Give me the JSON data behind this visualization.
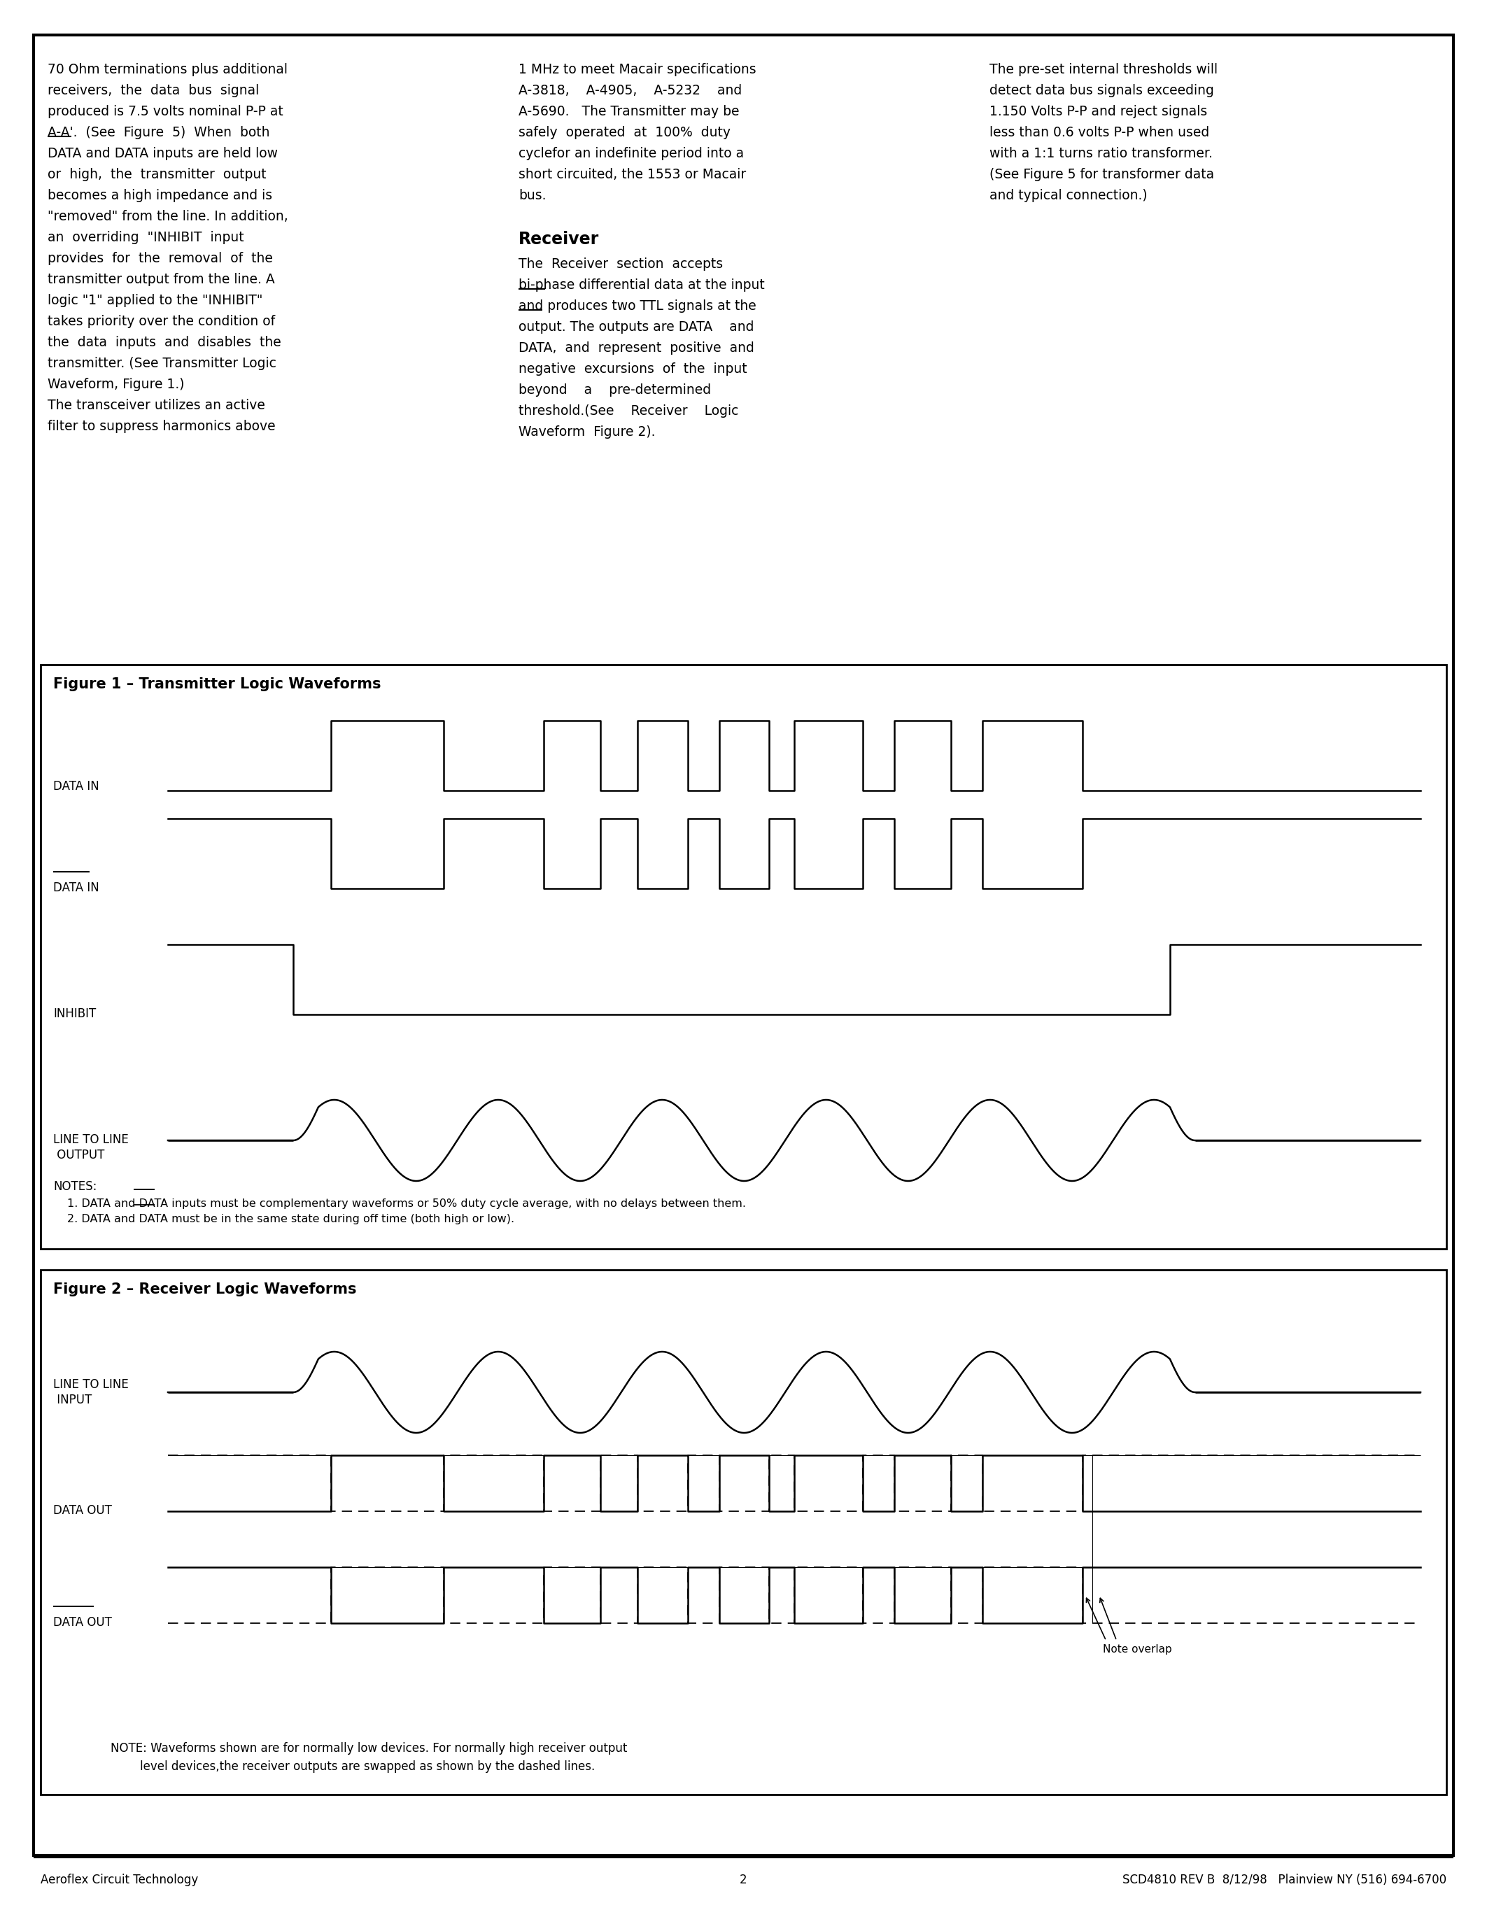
{
  "page_bg": "#ffffff",
  "fig1_title": "Figure 1 – Transmitter Logic Waveforms",
  "fig2_title": "Figure 2 – Receiver Logic Waveforms",
  "footer_left": "Aeroflex Circuit Technology",
  "footer_center": "2",
  "footer_right": "SCD4810 REV B  8/12/98   Plainview NY (516) 694-6700",
  "col1_lines": [
    "70 Ohm terminations plus additional",
    "receivers,  the  data  bus  signal",
    "produced is 7.5 volts nominal P-P at",
    "A-A'.  (See  Figure  5)  When  both",
    "DATA and DATA inputs are held low",
    "or  high,  the  transmitter  output",
    "becomes a high impedance and is",
    "\"removed\" from the line. In addition,",
    "an  overriding  \"INHIBIT  input",
    "provides  for  the  removal  of  the",
    "transmitter output from the line. A",
    "logic \"1\" applied to the \"INHIBIT\"",
    "takes priority over the condition of",
    "the  data  inputs  and  disables  the",
    "transmitter. (See Transmitter Logic",
    "Waveform, Figure 1.)",
    "The transceiver utilizes an active",
    "filter to suppress harmonics above"
  ],
  "col2_lines_part1": [
    "1 MHz to meet Macair specifications",
    "A-3818,    A-4905,    A-5232    and",
    "A-5690.   The Transmitter may be",
    "safely  operated  at  100%  duty",
    "cyclefor an indefinite period into a",
    "short circuited, the 1553 or Macair",
    "bus."
  ],
  "col2_receiver_label": "Receiver",
  "col2_lines_part2": [
    "The  Receiver  section  accepts",
    "bi-phase differential data at the input",
    "and produces two TTL signals at the",
    "output. The outputs are DATA    and",
    "DATA,  and  represent  positive  and",
    "negative  excursions  of  the  input",
    "beyond    a    pre-determined",
    "threshold.(See    Receiver    Logic",
    "Waveform  Figure 2)."
  ],
  "col3_lines": [
    "The pre-set internal thresholds will",
    "detect data bus signals exceeding",
    "1.150 Volts P-P and reject signals",
    "less than 0.6 volts P-P when used",
    "with a 1:1 turns ratio transformer.",
    "(See Figure 5 for transformer data",
    "and typical connection.)"
  ],
  "notes_line1": "1. DATA and DATA inputs must be complementary waveforms or 50% duty cycle average, with no delays between them.",
  "notes_line2": "2. DATA and DATA must be in the same state during off time (both high or low).",
  "note_fig2_line1": "NOTE: Waveforms shown are for normally low devices. For normally high receiver output",
  "note_fig2_line2": "        level devices,the receiver outputs are swapped as shown by the dashed lines."
}
